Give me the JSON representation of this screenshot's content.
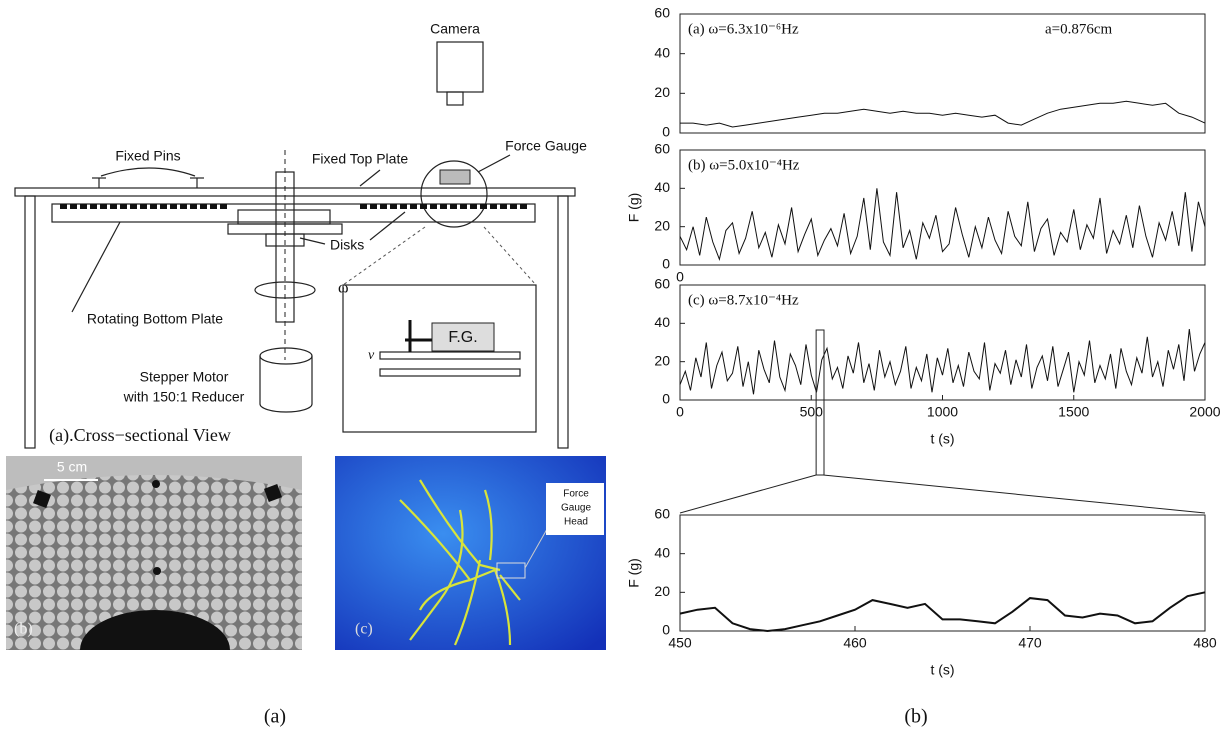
{
  "diagram": {
    "camera": "Camera",
    "fixed_pins": "Fixed Pins",
    "fixed_top_plate": "Fixed Top Plate",
    "force_gauge": "Force Gauge",
    "disks": "Disks",
    "omega": "ω",
    "rotating_bottom_plate": "Rotating Bottom Plate",
    "stepper_motor": "Stepper Motor",
    "reducer": "with 150:1 Reducer",
    "fg": "F.G.",
    "v": "v",
    "view_label": "(a).Cross−sectional View"
  },
  "photo_b": {
    "scale": "5 cm",
    "label": "(b)"
  },
  "photo_c": {
    "label": "(c)",
    "gauge_head": [
      "Force",
      "Gauge",
      "Head"
    ]
  },
  "chart_data": [
    {
      "type": "line",
      "annotations": [
        "(a)  ω=6.3x10⁻⁶Hz",
        "a=0.876cm"
      ],
      "color": "#111",
      "xlim": [
        0,
        2000
      ],
      "ylim": [
        0,
        60
      ],
      "yticks": [
        0,
        20,
        40,
        60
      ],
      "x": [
        0,
        50,
        100,
        150,
        200,
        250,
        300,
        350,
        400,
        450,
        500,
        550,
        600,
        650,
        700,
        750,
        800,
        850,
        900,
        950,
        1000,
        1050,
        1100,
        1150,
        1200,
        1250,
        1300,
        1350,
        1400,
        1450,
        1500,
        1550,
        1600,
        1650,
        1700,
        1750,
        1800,
        1850,
        1900,
        1950,
        2000
      ],
      "values": [
        5,
        5,
        4,
        5,
        3,
        4,
        5,
        6,
        7,
        8,
        9,
        10,
        10,
        11,
        12,
        11,
        10,
        11,
        10,
        10,
        9,
        10,
        9,
        8,
        9,
        5,
        4,
        7,
        10,
        12,
        13,
        14,
        15,
        15,
        16,
        15,
        14,
        15,
        10,
        8,
        5
      ]
    },
    {
      "type": "line",
      "annotations": [
        "(b)  ω=5.0x10⁻⁴Hz"
      ],
      "ylabel": "F (g)",
      "color": "#111",
      "xlim": [
        0,
        2000
      ],
      "xticks": [
        0
      ],
      "ylim": [
        0,
        60
      ],
      "yticks": [
        0,
        20,
        40,
        60
      ],
      "x": [
        0,
        25,
        50,
        75,
        100,
        125,
        150,
        175,
        200,
        225,
        250,
        275,
        300,
        325,
        350,
        375,
        400,
        425,
        450,
        475,
        500,
        525,
        550,
        575,
        600,
        625,
        650,
        675,
        700,
        725,
        750,
        775,
        800,
        825,
        850,
        875,
        900,
        925,
        950,
        975,
        1000,
        1025,
        1050,
        1075,
        1100,
        1125,
        1150,
        1175,
        1200,
        1225,
        1250,
        1275,
        1300,
        1325,
        1350,
        1375,
        1400,
        1425,
        1450,
        1475,
        1500,
        1525,
        1550,
        1575,
        1600,
        1625,
        1650,
        1675,
        1700,
        1725,
        1750,
        1775,
        1800,
        1825,
        1850,
        1875,
        1900,
        1925,
        1950,
        1975,
        2000
      ],
      "values": [
        15,
        8,
        20,
        5,
        25,
        12,
        3,
        18,
        22,
        6,
        14,
        28,
        9,
        17,
        4,
        21,
        11,
        30,
        7,
        16,
        24,
        5,
        13,
        19,
        10,
        27,
        6,
        15,
        35,
        8,
        40,
        12,
        5,
        38,
        9,
        18,
        3,
        22,
        14,
        26,
        7,
        11,
        30,
        16,
        4,
        20,
        9,
        25,
        13,
        6,
        28,
        15,
        10,
        33,
        7,
        19,
        24,
        5,
        17,
        12,
        29,
        8,
        21,
        14,
        35,
        6,
        18,
        11,
        26,
        9,
        31,
        15,
        4,
        22,
        13,
        28,
        10,
        38,
        7,
        33,
        20
      ]
    },
    {
      "type": "line",
      "annotations": [
        "(c)  ω=8.7x10⁻⁴Hz"
      ],
      "xlabel": "t (s)",
      "color": "#111",
      "xlim": [
        0,
        2000
      ],
      "xticks": [
        0,
        500,
        1000,
        1500,
        2000
      ],
      "ylim": [
        0,
        60
      ],
      "yticks": [
        0,
        20,
        40,
        60
      ],
      "x": [
        0,
        20,
        40,
        60,
        80,
        100,
        120,
        140,
        160,
        180,
        200,
        220,
        240,
        260,
        280,
        300,
        320,
        340,
        360,
        380,
        400,
        420,
        440,
        460,
        480,
        500,
        520,
        540,
        560,
        580,
        600,
        620,
        640,
        660,
        680,
        700,
        720,
        740,
        760,
        780,
        800,
        820,
        840,
        860,
        880,
        900,
        920,
        940,
        960,
        980,
        1000,
        1020,
        1040,
        1060,
        1080,
        1100,
        1120,
        1140,
        1160,
        1180,
        1200,
        1220,
        1240,
        1260,
        1280,
        1300,
        1320,
        1340,
        1360,
        1380,
        1400,
        1420,
        1440,
        1460,
        1480,
        1500,
        1520,
        1540,
        1560,
        1580,
        1600,
        1620,
        1640,
        1660,
        1680,
        1700,
        1720,
        1740,
        1760,
        1780,
        1800,
        1820,
        1840,
        1860,
        1880,
        1900,
        1920,
        1940,
        1960,
        1980,
        2000
      ],
      "values": [
        8,
        15,
        5,
        22,
        12,
        30,
        6,
        18,
        25,
        10,
        14,
        28,
        7,
        20,
        3,
        26,
        16,
        9,
        31,
        12,
        5,
        24,
        18,
        8,
        29,
        13,
        4,
        21,
        27,
        11,
        17,
        6,
        23,
        14,
        30,
        9,
        19,
        5,
        26,
        12,
        20,
        8,
        15,
        28,
        6,
        17,
        10,
        24,
        4,
        22,
        13,
        27,
        9,
        18,
        7,
        25,
        15,
        11,
        30,
        5,
        19,
        14,
        26,
        8,
        21,
        12,
        29,
        6,
        17,
        23,
        10,
        28,
        7,
        16,
        25,
        4,
        20,
        13,
        31,
        9,
        18,
        11,
        24,
        6,
        27,
        15,
        8,
        22,
        14,
        33,
        12,
        20,
        7,
        26,
        16,
        29,
        10,
        37,
        15,
        24,
        30
      ]
    },
    {
      "type": "line",
      "ylabel": "F (g)",
      "xlabel": "t (s)",
      "color": "#111",
      "xlim": [
        450,
        480
      ],
      "xticks": [
        450,
        460,
        470,
        480
      ],
      "ylim": [
        0,
        60
      ],
      "yticks": [
        0,
        20,
        40,
        60
      ],
      "x": [
        450,
        451,
        452,
        453,
        454,
        455,
        456,
        457,
        458,
        459,
        460,
        461,
        462,
        463,
        464,
        465,
        466,
        467,
        468,
        469,
        470,
        471,
        472,
        473,
        474,
        475,
        476,
        477,
        478,
        479,
        480
      ],
      "values": [
        9,
        11,
        12,
        4,
        1,
        0,
        1,
        3,
        5,
        8,
        11,
        16,
        14,
        12,
        14,
        6,
        6,
        5,
        4,
        10,
        17,
        16,
        8,
        7,
        9,
        8,
        4,
        5,
        12,
        18,
        20
      ]
    }
  ],
  "captions": {
    "left": "(a)",
    "right": "(b)"
  }
}
